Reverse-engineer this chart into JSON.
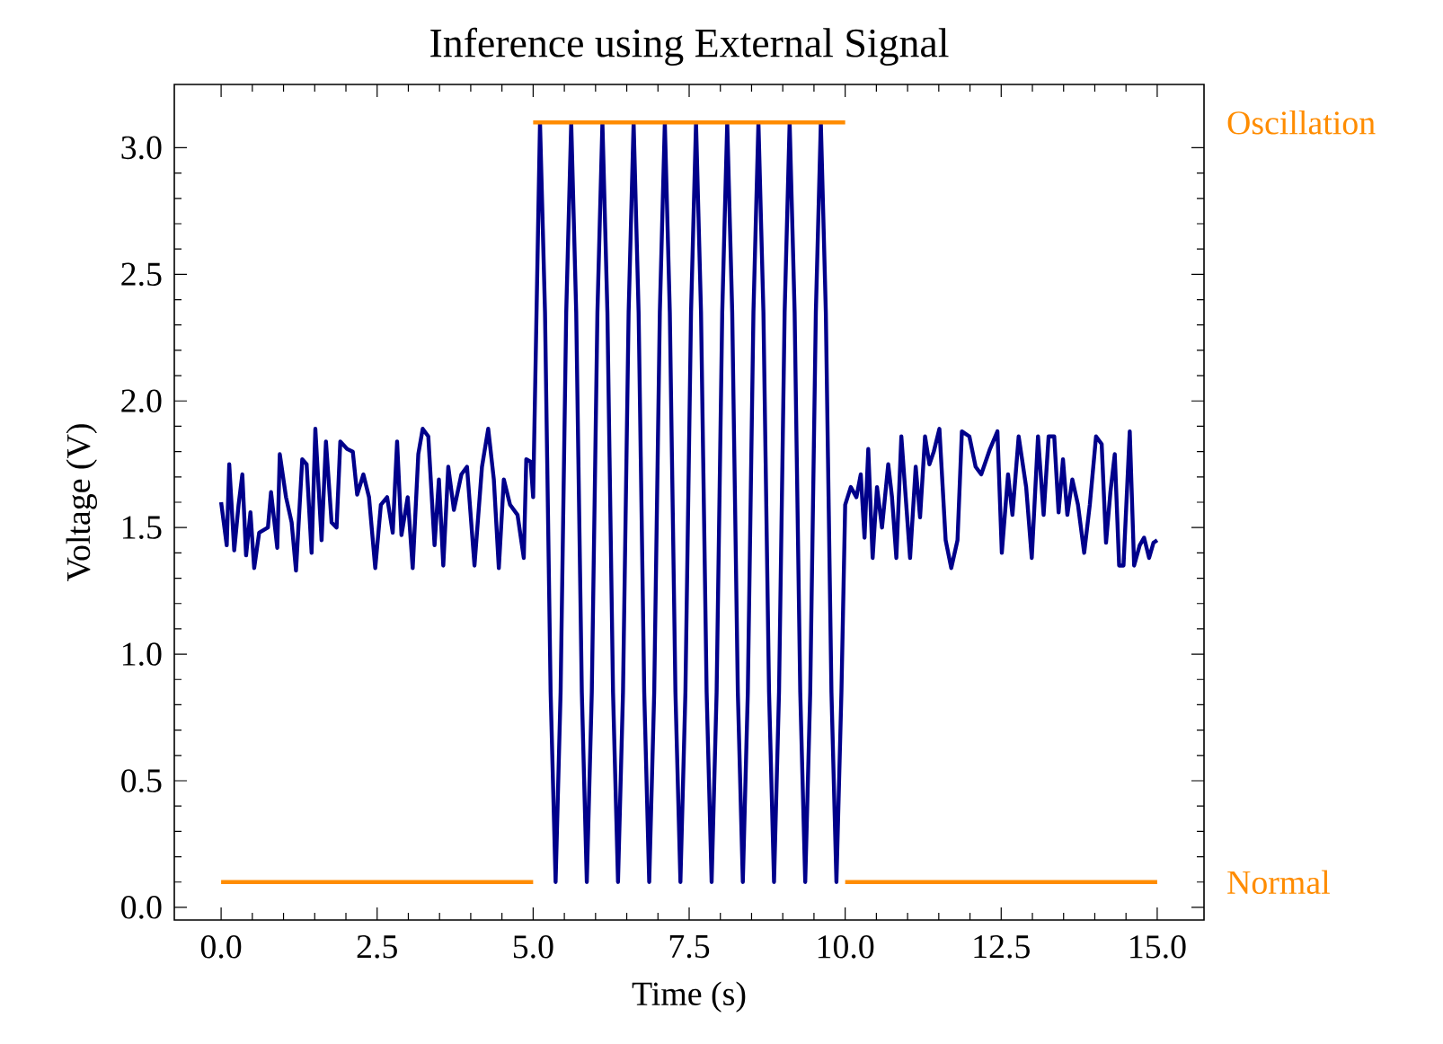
{
  "chart_data": {
    "type": "line",
    "title": "Inference using External Signal",
    "xlabel": "Time (s)",
    "ylabel": "Voltage (V)",
    "xlim": [
      -0.75,
      15.75
    ],
    "ylim": [
      -0.05,
      3.25
    ],
    "annotations": [
      "Oscillation",
      "Normal"
    ],
    "xticks": [
      {
        "value": 0,
        "label": "0.0"
      },
      2.5,
      {
        "value": 5,
        "label": "5.0"
      },
      7.5,
      {
        "value": 10,
        "label": "10.0"
      },
      12.5,
      {
        "value": 15,
        "label": "15.0"
      }
    ],
    "yticks": [
      {
        "value": 0,
        "label": "0.0"
      },
      0.5,
      {
        "value": 1,
        "label": "1.0"
      },
      1.5,
      {
        "value": 2,
        "label": "2.0"
      },
      2.5,
      {
        "value": 3,
        "label": "3.0"
      }
    ],
    "series": [
      {
        "color": "#00008b",
        "x": [
          0.0,
          0.09,
          0.13,
          0.21,
          0.28,
          0.34,
          0.4,
          0.47,
          0.53,
          0.61,
          0.75,
          0.8,
          0.9,
          0.94,
          1.04,
          1.13,
          1.2,
          1.3,
          1.37,
          1.45,
          1.51,
          1.61,
          1.68,
          1.77,
          1.85,
          1.91,
          2.02,
          2.11,
          2.18,
          2.28,
          2.37,
          2.47,
          2.56,
          2.66,
          2.75,
          2.82,
          2.89,
          2.99,
          3.07,
          3.16,
          3.23,
          3.32,
          3.42,
          3.49,
          3.56,
          3.64,
          3.73,
          3.85,
          3.94,
          4.06,
          4.18,
          4.28,
          4.37,
          4.45,
          4.53,
          4.63,
          4.75,
          4.85,
          4.89,
          4.96,
          5.0,
          5.11,
          5.19,
          5.28,
          5.36,
          5.44,
          5.53,
          5.61,
          5.69,
          5.78,
          5.86,
          5.94,
          6.03,
          6.11,
          6.19,
          6.28,
          6.36,
          6.44,
          6.53,
          6.61,
          6.69,
          6.78,
          6.86,
          6.94,
          7.03,
          7.11,
          7.19,
          7.28,
          7.36,
          7.44,
          7.53,
          7.61,
          7.69,
          7.78,
          7.86,
          7.94,
          8.03,
          8.11,
          8.19,
          8.28,
          8.36,
          8.44,
          8.53,
          8.61,
          8.69,
          8.78,
          8.86,
          8.94,
          9.03,
          9.11,
          9.19,
          9.28,
          9.36,
          9.44,
          9.53,
          9.61,
          9.69,
          9.78,
          9.86,
          9.94,
          10.0,
          10.09,
          10.18,
          10.25,
          10.31,
          10.37,
          10.44,
          10.51,
          10.59,
          10.69,
          10.75,
          10.82,
          10.9,
          10.97,
          11.04,
          11.13,
          11.2,
          11.28,
          11.35,
          11.42,
          11.51,
          11.61,
          11.7,
          11.8,
          11.87,
          11.99,
          12.09,
          12.18,
          12.32,
          12.44,
          12.51,
          12.61,
          12.68,
          12.78,
          12.9,
          12.99,
          13.09,
          13.18,
          13.26,
          13.35,
          13.42,
          13.49,
          13.56,
          13.64,
          13.73,
          13.83,
          13.92,
          14.02,
          14.11,
          14.18,
          14.25,
          14.32,
          14.39,
          14.46,
          14.56,
          14.63,
          14.72,
          14.79,
          14.87,
          14.94,
          15.0
        ],
        "values": [
          1.6,
          1.43,
          1.75,
          1.41,
          1.59,
          1.71,
          1.39,
          1.56,
          1.34,
          1.48,
          1.5,
          1.64,
          1.42,
          1.79,
          1.62,
          1.52,
          1.33,
          1.77,
          1.75,
          1.4,
          1.89,
          1.45,
          1.84,
          1.52,
          1.5,
          1.84,
          1.81,
          1.8,
          1.63,
          1.71,
          1.62,
          1.34,
          1.59,
          1.62,
          1.48,
          1.84,
          1.47,
          1.62,
          1.34,
          1.79,
          1.89,
          1.86,
          1.43,
          1.69,
          1.35,
          1.74,
          1.57,
          1.71,
          1.74,
          1.35,
          1.74,
          1.89,
          1.69,
          1.34,
          1.69,
          1.59,
          1.55,
          1.38,
          1.77,
          1.76,
          1.62,
          3.1,
          2.35,
          0.85,
          0.1,
          0.85,
          2.35,
          3.1,
          2.35,
          0.85,
          0.1,
          0.85,
          2.35,
          3.1,
          2.35,
          0.85,
          0.1,
          0.85,
          2.35,
          3.1,
          2.35,
          0.85,
          0.1,
          0.85,
          2.35,
          3.1,
          2.35,
          0.85,
          0.1,
          0.85,
          2.35,
          3.1,
          2.35,
          0.85,
          0.1,
          0.85,
          2.35,
          3.1,
          2.35,
          0.85,
          0.1,
          0.85,
          2.35,
          3.1,
          2.35,
          0.85,
          0.1,
          0.85,
          2.35,
          3.1,
          2.35,
          0.85,
          0.1,
          0.85,
          2.35,
          3.1,
          2.35,
          0.85,
          0.1,
          0.85,
          1.59,
          1.66,
          1.62,
          1.71,
          1.46,
          1.81,
          1.38,
          1.66,
          1.5,
          1.75,
          1.62,
          1.38,
          1.86,
          1.62,
          1.38,
          1.74,
          1.54,
          1.86,
          1.75,
          1.8,
          1.89,
          1.45,
          1.34,
          1.45,
          1.88,
          1.86,
          1.74,
          1.71,
          1.81,
          1.88,
          1.4,
          1.71,
          1.55,
          1.86,
          1.66,
          1.38,
          1.86,
          1.55,
          1.86,
          1.86,
          1.56,
          1.77,
          1.55,
          1.69,
          1.59,
          1.4,
          1.59,
          1.86,
          1.83,
          1.44,
          1.64,
          1.79,
          1.35,
          1.35,
          1.88,
          1.35,
          1.43,
          1.46,
          1.38,
          1.44,
          1.45
        ]
      },
      {
        "color": "#ff8c00",
        "x": [
          0,
          5
        ],
        "values": [
          0.1,
          0.1
        ]
      },
      {
        "color": "#ff8c00",
        "x": [
          5,
          10
        ],
        "values": [
          3.1,
          3.1
        ]
      },
      {
        "color": "#ff8c00",
        "x": [
          10,
          15
        ],
        "values": [
          0.1,
          0.1
        ]
      }
    ]
  }
}
